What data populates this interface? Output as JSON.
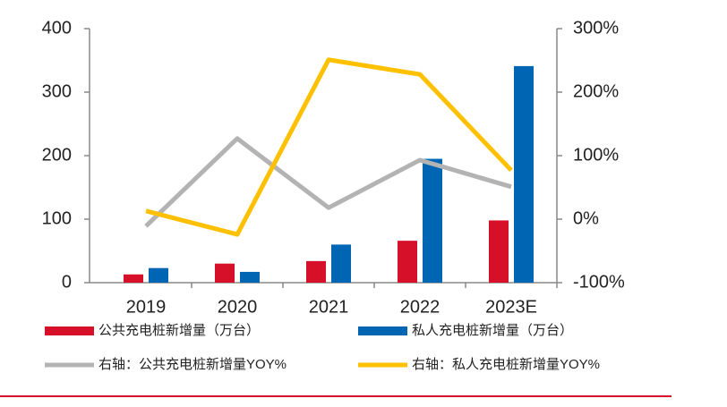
{
  "chart_data": {
    "type": "bar",
    "categories": [
      "2019",
      "2020",
      "2021",
      "2022",
      "2023E"
    ],
    "series": [
      {
        "name": "公共充电桩新增量（万台）",
        "type": "bar",
        "color": "#d7102a",
        "values": [
          13,
          30,
          34,
          66,
          98
        ]
      },
      {
        "name": "私人充电桩新增量（万台）",
        "type": "bar",
        "color": "#0066b3",
        "values": [
          23,
          17,
          60,
          195,
          341
        ]
      },
      {
        "name": "右轴：公共充电桩新增量YOY%",
        "type": "line",
        "axis": "y2",
        "color": "#b3b3b3",
        "values": [
          -11,
          127,
          18,
          93,
          51
        ]
      },
      {
        "name": "右轴：私人充电桩新增量YOY%",
        "type": "line",
        "axis": "y2",
        "color": "#ffc000",
        "values": [
          13,
          -24,
          251,
          228,
          77
        ]
      }
    ],
    "ylim": [
      0,
      400
    ],
    "yticks": [
      0,
      100,
      200,
      300,
      400
    ],
    "y2lim": [
      -100,
      300
    ],
    "y2ticks": [
      {
        "value": -100,
        "label": "-100%"
      },
      {
        "value": 0,
        "label": "0%"
      },
      {
        "value": 100,
        "label": "100%"
      },
      {
        "value": 200,
        "label": "200%"
      },
      {
        "value": 300,
        "label": "300%"
      }
    ]
  }
}
